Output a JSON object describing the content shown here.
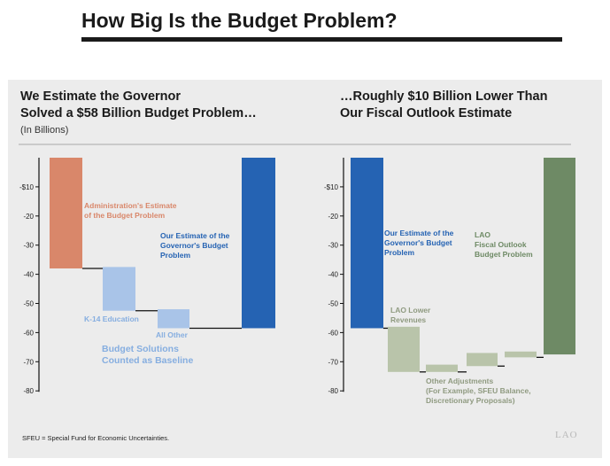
{
  "page": {
    "title": "How Big Is the Budget Problem?",
    "footnote": "SFEU = Special Fund for Economic Uncertainties.",
    "logo": "LAO"
  },
  "colors": {
    "admin_estimate": "#d9876a",
    "baseline_solution": "#a9c4e8",
    "lao_estimate": "#2563b3",
    "lao_lower": "#b9c4aa",
    "lao_outlook": "#6e8a65",
    "connector": "#111111"
  },
  "chart_data": [
    {
      "type": "waterfall",
      "title_lines": [
        "We Estimate the Governor",
        "Solved a $58 Billion Budget Problem…"
      ],
      "subtitle": "(In Billions)",
      "ylim": [
        -80,
        0
      ],
      "yticks": [
        {
          "value": -10,
          "label": "-$10"
        },
        {
          "value": -20,
          "label": "-20"
        },
        {
          "value": -30,
          "label": "-30"
        },
        {
          "value": -40,
          "label": "-40"
        },
        {
          "value": -50,
          "label": "-50"
        },
        {
          "value": -60,
          "label": "-60"
        },
        {
          "value": -70,
          "label": "-70"
        },
        {
          "value": -80,
          "label": "-80"
        }
      ],
      "bars": [
        {
          "name": "admin-estimate",
          "start": 0,
          "end": -38,
          "color": "#d9876a"
        },
        {
          "name": "k14-education",
          "start": -37.5,
          "end": -52.5,
          "color": "#a9c4e8"
        },
        {
          "name": "all-other",
          "start": -52,
          "end": -58.5,
          "color": "#a9c4e8"
        },
        {
          "name": "our-estimate",
          "start": 0,
          "end": -58.5,
          "color": "#2563b3"
        }
      ],
      "annotations": [
        {
          "lines": [
            "Administration's Estimate",
            "of the Budget Problem"
          ],
          "color": "#d9876a"
        },
        {
          "lines": [
            "Our Estimate of the",
            "Governor's Budget",
            "Problem"
          ],
          "color": "#2563b3"
        },
        {
          "lines": [
            "K-14 Education"
          ],
          "color": "#86aee0"
        },
        {
          "lines": [
            "All Other"
          ],
          "color": "#86aee0"
        },
        {
          "lines": [
            "Budget Solutions",
            "Counted as Baseline"
          ],
          "color": "#86aee0"
        }
      ]
    },
    {
      "type": "waterfall",
      "title_lines": [
        "…Roughly $10 Billion Lower Than",
        "Our Fiscal Outlook Estimate"
      ],
      "ylim": [
        -80,
        0
      ],
      "yticks": [
        {
          "value": -10,
          "label": "-$10"
        },
        {
          "value": -20,
          "label": "-20"
        },
        {
          "value": -30,
          "label": "-30"
        },
        {
          "value": -40,
          "label": "-40"
        },
        {
          "value": -50,
          "label": "-50"
        },
        {
          "value": -60,
          "label": "-60"
        },
        {
          "value": -70,
          "label": "-70"
        },
        {
          "value": -80,
          "label": "-80"
        }
      ],
      "bars": [
        {
          "name": "our-estimate",
          "start": 0,
          "end": -58.5,
          "color": "#2563b3"
        },
        {
          "name": "lao-lower-revenues",
          "start": -58,
          "end": -73.5,
          "color": "#b9c4aa"
        },
        {
          "name": "adjustment-1",
          "start": -71,
          "end": -73.5,
          "color": "#b9c4aa"
        },
        {
          "name": "adjustment-2",
          "start": -67,
          "end": -71.5,
          "color": "#b9c4aa"
        },
        {
          "name": "adjustment-3",
          "start": -66.5,
          "end": -68.5,
          "color": "#b9c4aa"
        },
        {
          "name": "lao-fiscal-outlook",
          "start": 0,
          "end": -67.5,
          "color": "#6e8a65"
        }
      ],
      "annotations": [
        {
          "lines": [
            "Our Estimate of the",
            "Governor's Budget",
            "Problem"
          ],
          "color": "#2563b3"
        },
        {
          "lines": [
            "LAO",
            "Fiscal Outlook",
            "Budget Problem"
          ],
          "color": "#6e8a65"
        },
        {
          "lines": [
            "LAO Lower",
            "Revenues"
          ],
          "color": "#8f9a80"
        },
        {
          "lines": [
            "Other Adjustments",
            "(For Example, SFEU Balance,",
            "Discretionary Proposals)"
          ],
          "color": "#8f9a80"
        }
      ]
    }
  ]
}
